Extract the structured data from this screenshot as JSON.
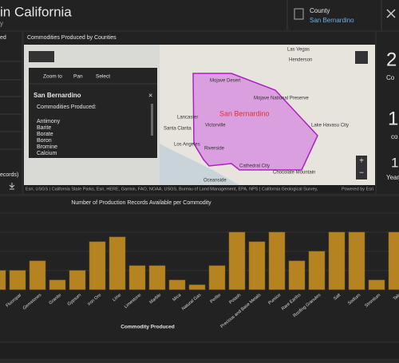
{
  "header": {
    "title": "in California",
    "subtitle": "y",
    "county_label": "County",
    "county_value": "San Bernardino"
  },
  "left_panel": {
    "heading": "ed",
    "footer": "ecords)"
  },
  "map": {
    "title": "Commodities Produced by Counties",
    "toolbar": [
      "Zoom to",
      "Pan",
      "Select"
    ],
    "popup_title": "San Bernardino",
    "popup_heading": "Commodities Produced:",
    "popup_items": [
      "Antimony",
      "Barite",
      "Borate",
      "Boron",
      "Bromine",
      "Calcium"
    ],
    "labels": [
      "Mojave Desert",
      "Mojave National Preserve",
      "San Bernardino",
      "Victorville",
      "Lancaster",
      "Las Vegas",
      "Henderson",
      "Santa Clarita",
      "Los Angeles",
      "Riverside",
      "Lake Havasu City",
      "Cathedral City",
      "Oceanside",
      "Chocolate Mountain"
    ],
    "attribution": "Esri, USGS | California State Parks, Esri, HERE, Garmin, FAO, NOAA, USGS, Bureau of Land Management, EPA, NPS | California Geological Survey,",
    "powered": "Powered by Esri"
  },
  "indicators": [
    {
      "value": 2,
      "label": "Co"
    },
    {
      "value": 1,
      "label": "co"
    },
    {
      "value": 1,
      "label": "Year"
    }
  ],
  "chart_data": {
    "type": "bar",
    "title": "Number of Production Records Available per Commodity",
    "x_label": "Commodity Produced",
    "categories": [
      null,
      "Fluorspar",
      "Gemstones",
      "Granite",
      "Gypsum",
      "Iron Ore",
      "Lime",
      "Limestone",
      "Marble",
      "Mica",
      "Natural Gas",
      "Perlite",
      "Potash",
      "Precious and Base Metals",
      "Pumice",
      "Rare Earths",
      "Roofing Granules",
      "Salt",
      "Sodium",
      "Strontium",
      "Talc"
    ],
    "values": [
      4,
      4,
      6,
      2,
      4,
      10,
      11,
      5,
      5,
      2,
      1,
      5,
      12,
      10,
      12,
      6,
      8,
      12,
      12,
      2,
      12
    ],
    "color": "#b5831f",
    "ylim": [
      0,
      16
    ]
  }
}
